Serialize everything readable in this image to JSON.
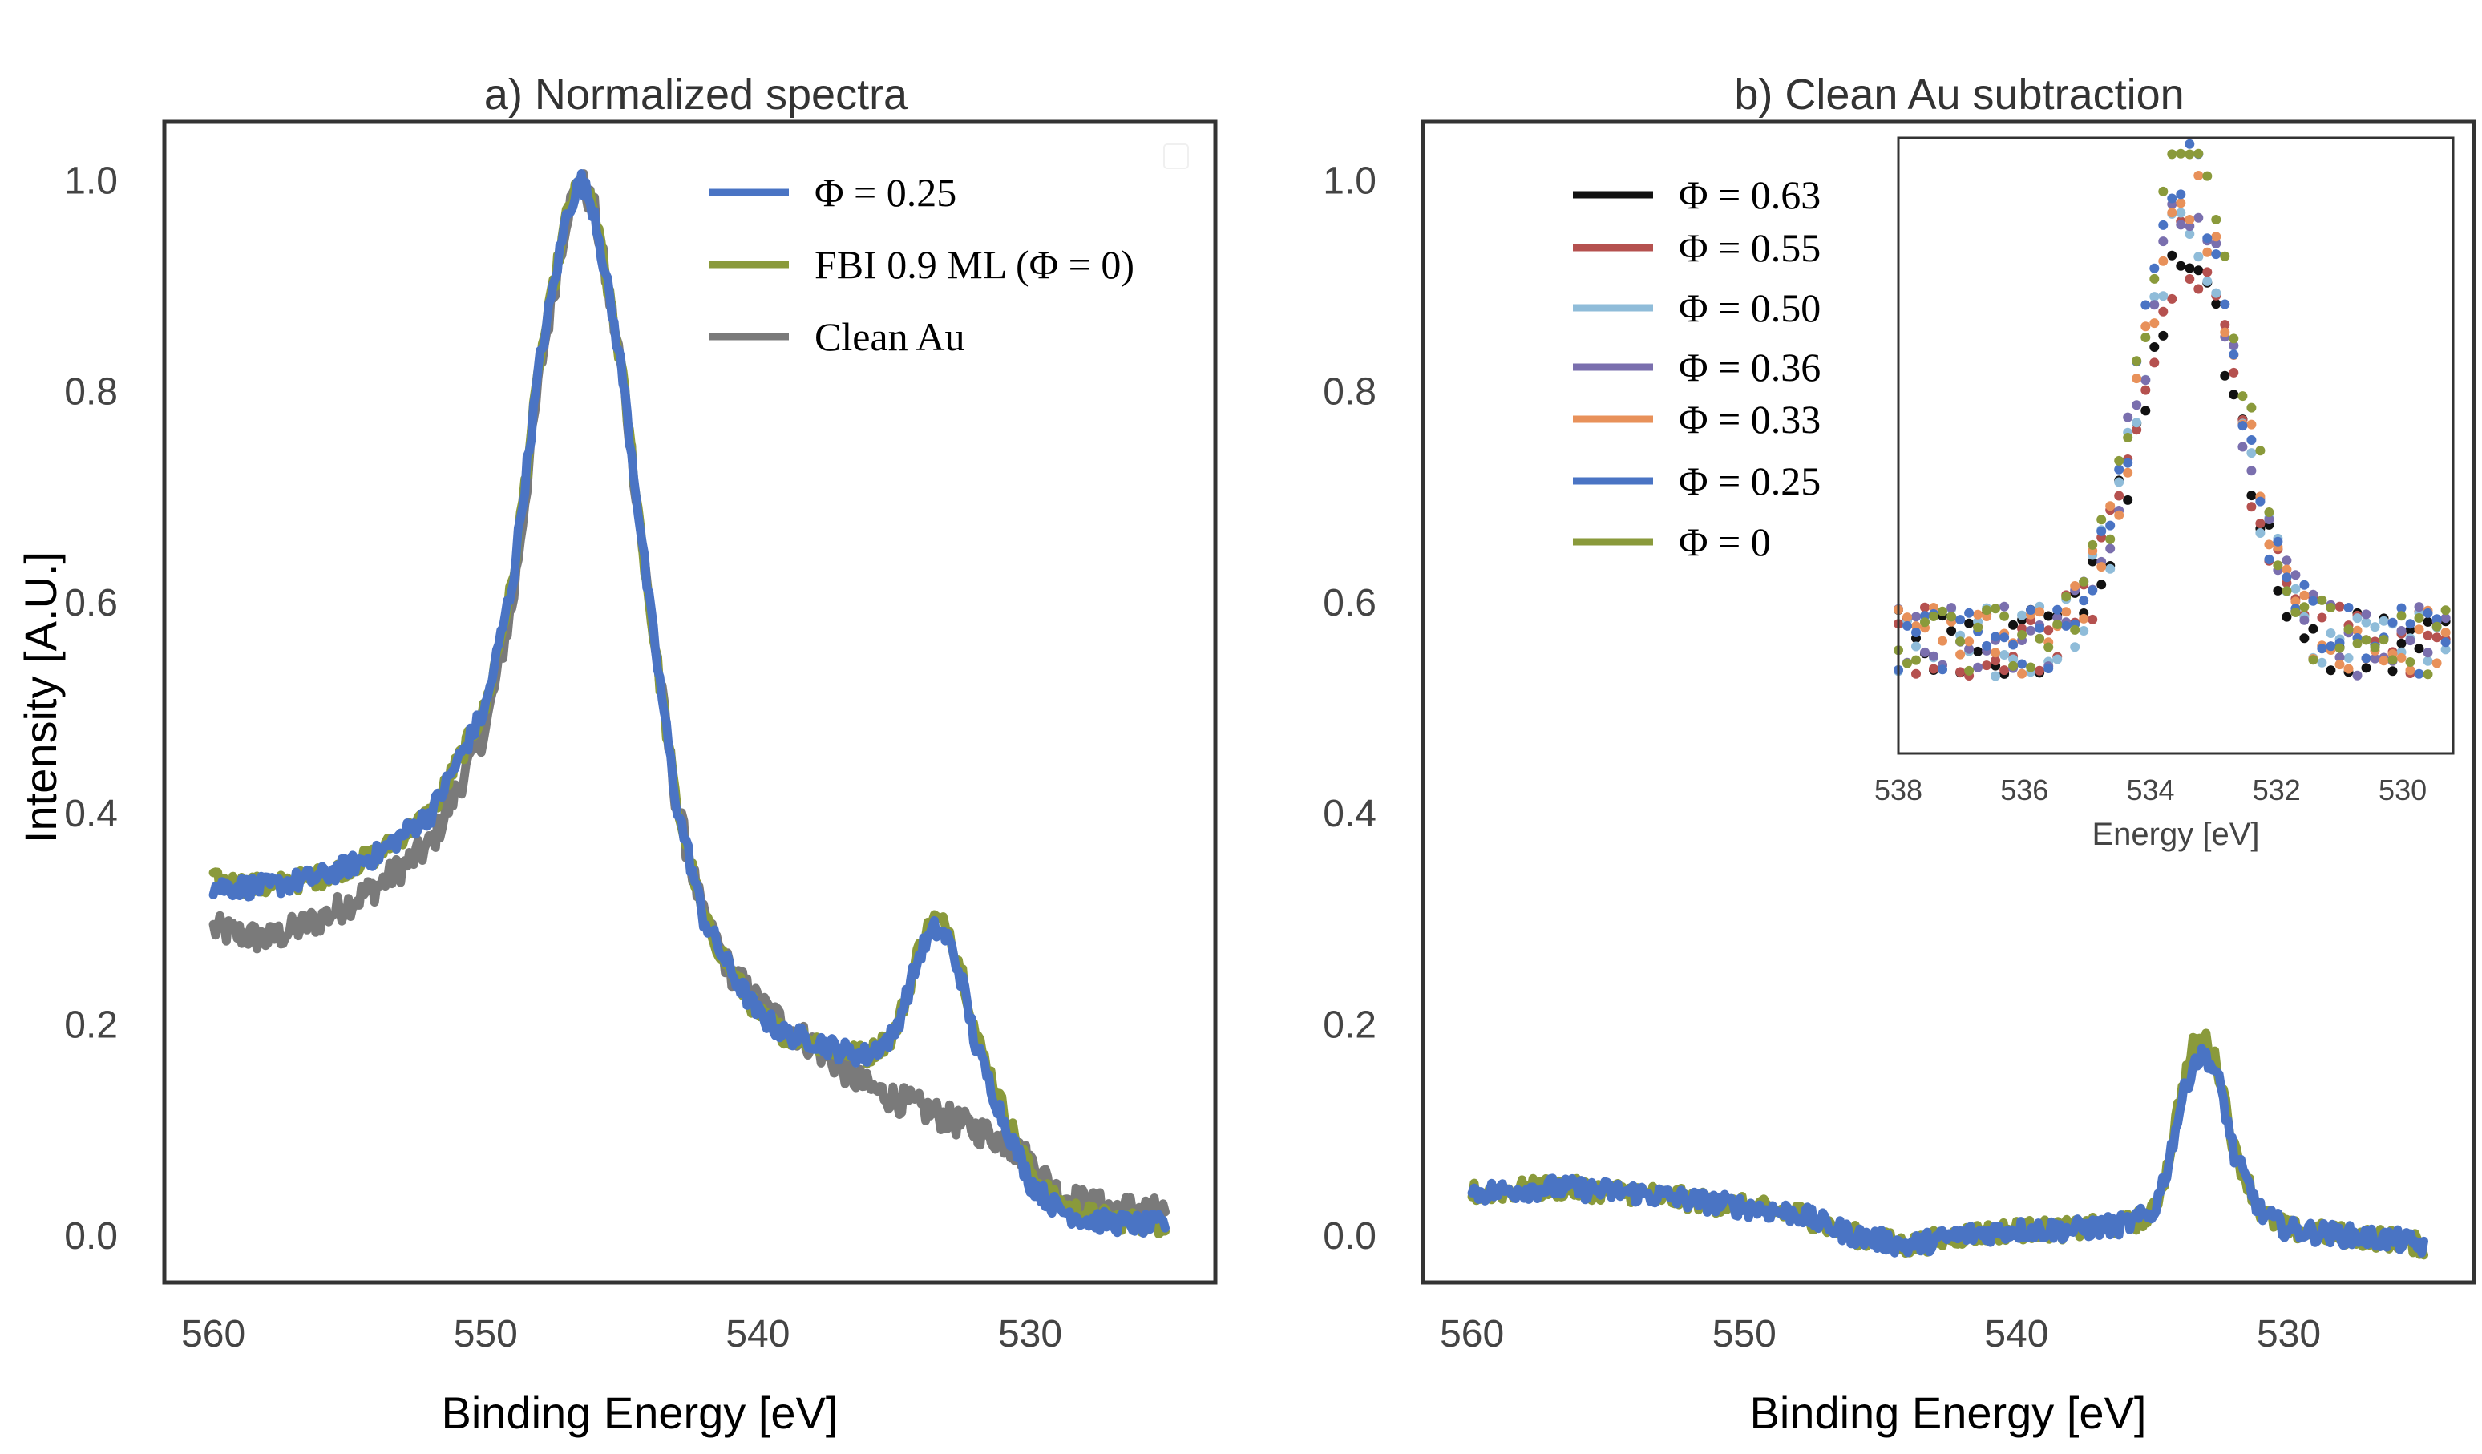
{
  "chart_data": [
    {
      "type": "line",
      "title": "a) Normalized spectra",
      "xlabel": "Binding Energy [eV]",
      "ylabel": "Intensity [A.U.]",
      "xlim": [
        561.8,
        523.2
      ],
      "ylim": [
        -0.045,
        1.055
      ],
      "x_ticks": [
        "560",
        "550",
        "540",
        "530"
      ],
      "y_ticks": [
        "0.0",
        "0.2",
        "0.4",
        "0.6",
        "0.8",
        "1.0"
      ],
      "grid": false,
      "legend_position": "top-right",
      "legend": [
        "Φ = 0.25",
        "FBI 0.9 ML (Φ = 0)",
        "Clean Au"
      ],
      "series": [
        {
          "name": "Clean Au",
          "color": "#7a7a7a",
          "x": [
            560,
            558,
            556,
            554,
            552,
            550,
            549,
            548,
            547,
            546.5,
            546,
            545,
            544,
            543,
            542,
            541,
            540,
            539,
            538,
            537,
            536,
            535,
            534,
            533,
            532,
            531,
            530,
            529,
            528,
            527,
            526,
            525
          ],
          "y": [
            0.29,
            0.28,
            0.3,
            0.33,
            0.37,
            0.48,
            0.6,
            0.82,
            0.97,
            1.0,
            0.97,
            0.82,
            0.6,
            0.41,
            0.3,
            0.25,
            0.22,
            0.2,
            0.18,
            0.16,
            0.14,
            0.13,
            0.12,
            0.11,
            0.1,
            0.09,
            0.07,
            0.04,
            0.03,
            0.025,
            0.025,
            0.02
          ]
        },
        {
          "name": "FBI 0.9 ML (Φ = 0)",
          "color": "#8a9a3b",
          "x": [
            560,
            558,
            556,
            554,
            552,
            550,
            549,
            548,
            547,
            546.5,
            546,
            545,
            544,
            543,
            542,
            541,
            540,
            539,
            538,
            537,
            536,
            535,
            534.5,
            534,
            533.5,
            533,
            532.5,
            532,
            531,
            530,
            529,
            528,
            527,
            526,
            525
          ],
          "y": [
            0.335,
            0.33,
            0.34,
            0.36,
            0.4,
            0.5,
            0.62,
            0.83,
            0.97,
            1.0,
            0.97,
            0.82,
            0.6,
            0.41,
            0.3,
            0.25,
            0.21,
            0.19,
            0.185,
            0.175,
            0.17,
            0.19,
            0.23,
            0.28,
            0.3,
            0.29,
            0.25,
            0.19,
            0.12,
            0.06,
            0.03,
            0.02,
            0.015,
            0.012,
            0.01
          ]
        },
        {
          "name": "Φ = 0.25",
          "color": "#4a74c4",
          "x": [
            560,
            558,
            556,
            554,
            552,
            550,
            549,
            548,
            547,
            546.5,
            546,
            545,
            544,
            543,
            542,
            541,
            540,
            539,
            538,
            537,
            536,
            535,
            534.5,
            534,
            533.5,
            533,
            532.5,
            532,
            531,
            530,
            529,
            528,
            527,
            526,
            525
          ],
          "y": [
            0.33,
            0.33,
            0.34,
            0.36,
            0.4,
            0.5,
            0.62,
            0.83,
            0.97,
            1.0,
            0.97,
            0.82,
            0.6,
            0.41,
            0.3,
            0.25,
            0.21,
            0.19,
            0.185,
            0.175,
            0.17,
            0.19,
            0.23,
            0.27,
            0.29,
            0.28,
            0.24,
            0.18,
            0.11,
            0.05,
            0.025,
            0.015,
            0.012,
            0.01,
            0.01
          ]
        }
      ]
    },
    {
      "type": "line",
      "title": "b) Clean Au subtraction",
      "xlabel": "Binding Energy [eV]",
      "ylabel": "",
      "xlim": [
        561.8,
        523.2
      ],
      "ylim": [
        -0.045,
        1.055
      ],
      "x_ticks": [
        "560",
        "550",
        "540",
        "530"
      ],
      "y_ticks": [
        "0.0",
        "0.2",
        "0.4",
        "0.6",
        "0.8",
        "1.0"
      ],
      "grid": false,
      "legend_position": "top-left",
      "legend": [
        "Φ = 0.63",
        "Φ = 0.55",
        "Φ = 0.50",
        "Φ = 0.36",
        "Φ = 0.33",
        "Φ = 0.25",
        "Φ = 0"
      ],
      "series": [
        {
          "name": "Φ = 0",
          "color": "#8a9a3b",
          "x": [
            560,
            557,
            554,
            551,
            548,
            546,
            544,
            542,
            540,
            538,
            536,
            535,
            534.5,
            534,
            533.5,
            533,
            532.5,
            532,
            531,
            530,
            528,
            526,
            525
          ],
          "y": [
            0.04,
            0.045,
            0.04,
            0.03,
            0.02,
            0.0,
            -0.01,
            0.0,
            0.005,
            0.005,
            0.01,
            0.02,
            0.06,
            0.13,
            0.18,
            0.185,
            0.15,
            0.08,
            0.02,
            0.005,
            0.0,
            -0.005,
            -0.01
          ]
        },
        {
          "name": "Φ = 0.25",
          "color": "#4a74c4",
          "x": [
            560,
            557,
            554,
            551,
            548,
            546,
            544,
            542,
            540,
            538,
            536,
            535,
            534.5,
            534,
            533.5,
            533,
            532.5,
            532,
            531,
            530,
            528,
            526,
            525
          ],
          "y": [
            0.04,
            0.045,
            0.04,
            0.03,
            0.02,
            0.0,
            -0.01,
            0.0,
            0.005,
            0.005,
            0.01,
            0.02,
            0.06,
            0.12,
            0.165,
            0.17,
            0.14,
            0.075,
            0.02,
            0.005,
            0.0,
            -0.005,
            -0.01
          ]
        }
      ],
      "inset": {
        "type": "scatter",
        "xlabel": "Energy [eV]",
        "xlim": [
          538,
          529.2
        ],
        "ylim": [
          -0.02,
          0.2
        ],
        "x_ticks": [
          "538",
          "536",
          "534",
          "532",
          "530"
        ],
        "series": [
          {
            "name": "Φ = 0.63",
            "color": "#111111",
            "peak": 0.135
          },
          {
            "name": "Φ = 0.55",
            "color": "#b5514f",
            "peak": 0.14
          },
          {
            "name": "Φ = 0.50",
            "color": "#8fbcd9",
            "peak": 0.15
          },
          {
            "name": "Φ = 0.36",
            "color": "#7a6fae",
            "peak": 0.155
          },
          {
            "name": "Φ = 0.33",
            "color": "#e8915a",
            "peak": 0.16
          },
          {
            "name": "Φ = 0.25",
            "color": "#4a74c4",
            "peak": 0.168
          },
          {
            "name": "Φ = 0",
            "color": "#8a9a3b",
            "peak": 0.18
          }
        ]
      }
    }
  ]
}
